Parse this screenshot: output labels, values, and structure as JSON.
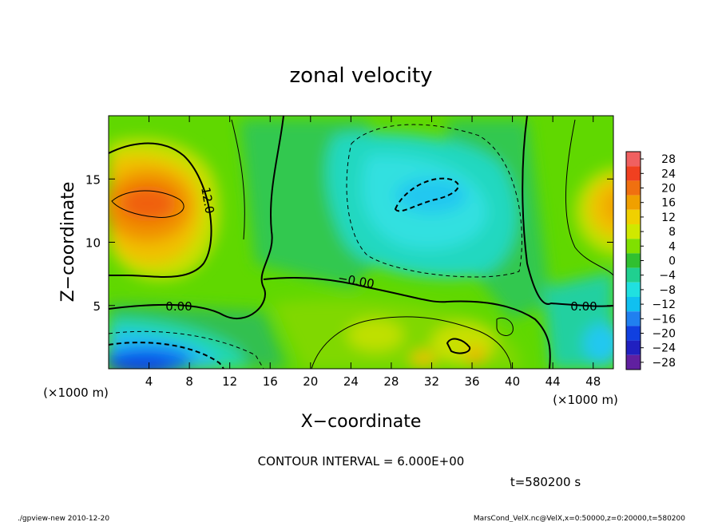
{
  "chart_data": {
    "type": "heatmap",
    "title": "zonal velocity",
    "xlabel": "X−coordinate",
    "ylabel": "Z−coordinate",
    "x_unit_label": "(×1000 m)",
    "xlim": [
      0,
      50
    ],
    "ylim": [
      0,
      20
    ],
    "x_ticks": [
      4,
      8,
      12,
      16,
      20,
      24,
      28,
      32,
      36,
      40,
      44,
      48
    ],
    "y_ticks": [
      5,
      10,
      15
    ],
    "contour_interval_label": "CONTOUR INTERVAL = 6.000E+00",
    "contour_labels": [
      {
        "text": "12.0",
        "x": 8,
        "z": 13
      },
      {
        "text": "0.00",
        "x": 7,
        "z": 5
      },
      {
        "text": "−0.00",
        "x": 25,
        "z": 6.6
      },
      {
        "text": "0.00",
        "x": 47,
        "z": 5
      }
    ],
    "colorbar": {
      "levels": [
        28,
        24,
        20,
        16,
        12,
        8,
        4,
        0,
        -4,
        -8,
        -12,
        -16,
        -20,
        -24,
        -28
      ],
      "labels": [
        "28",
        "24",
        "20",
        "16",
        "12",
        "8",
        "4",
        "0",
        "−4",
        "−8",
        "−12",
        "−16",
        "−20",
        "−24",
        "−28"
      ],
      "colors": [
        "#f06060",
        "#f04020",
        "#f07010",
        "#f0a000",
        "#f0d000",
        "#d0e800",
        "#80e000",
        "#30c030",
        "#20d090",
        "#20e0e0",
        "#10c0f0",
        "#2080f0",
        "#1040e0",
        "#2020c0",
        "#6020a0"
      ]
    },
    "grid": false,
    "legend": "colorbar-right"
  },
  "time_label": "t=580200 s",
  "footer": {
    "left": "./gpview-new  2010-12-20",
    "right": "MarsCond_VelX.nc@VelX,x=0:50000,z=0:20000,t=580200"
  }
}
